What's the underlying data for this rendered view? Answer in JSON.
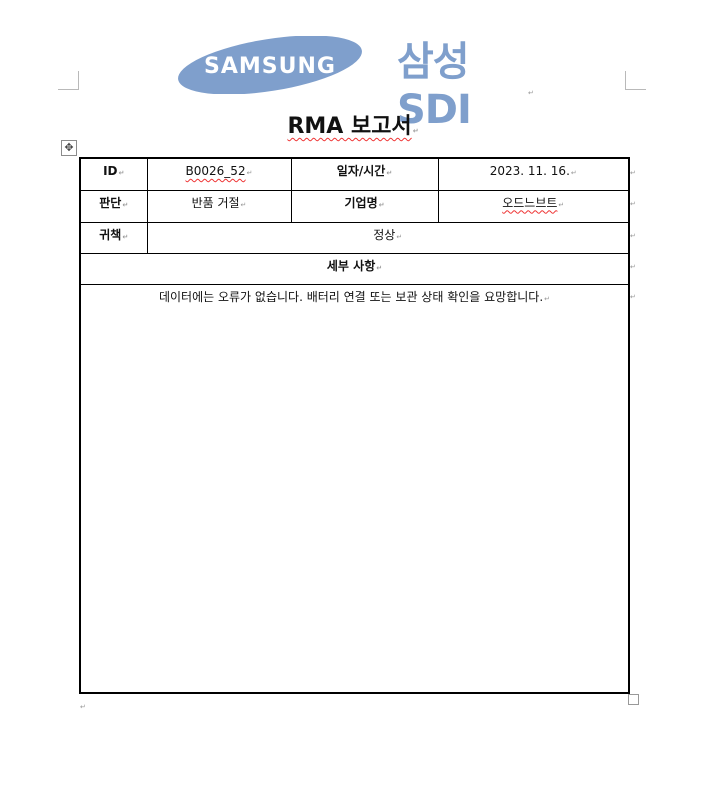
{
  "header": {
    "samsung_logo": "SAMSUNG",
    "sdi_logo": "삼성SDI"
  },
  "title": "RMA 보고서",
  "colors": {
    "samsung_oval": "#7f9fcc",
    "sdi_text": "#7f9fcc",
    "spellcheck": "#e33333"
  },
  "table": {
    "id_label": "ID",
    "id_value": "B0026_52",
    "date_label": "일자/시간",
    "date_value": "2023. 11. 16.",
    "judgment_label": "판단",
    "judgment_value": "반품 거절",
    "company_label": "기업명",
    "company_value": "오드느브트",
    "attribution_label": "귀책",
    "attribution_value": "정상",
    "details_label": "세부 사항",
    "details_text": "데이터에는 오류가 없습니다. 배터리 연결 또는 보관 상태 확인을 요망합니다."
  },
  "icons": {
    "move_handle": "table-move-icon",
    "resize_handle": "table-resize-icon"
  }
}
